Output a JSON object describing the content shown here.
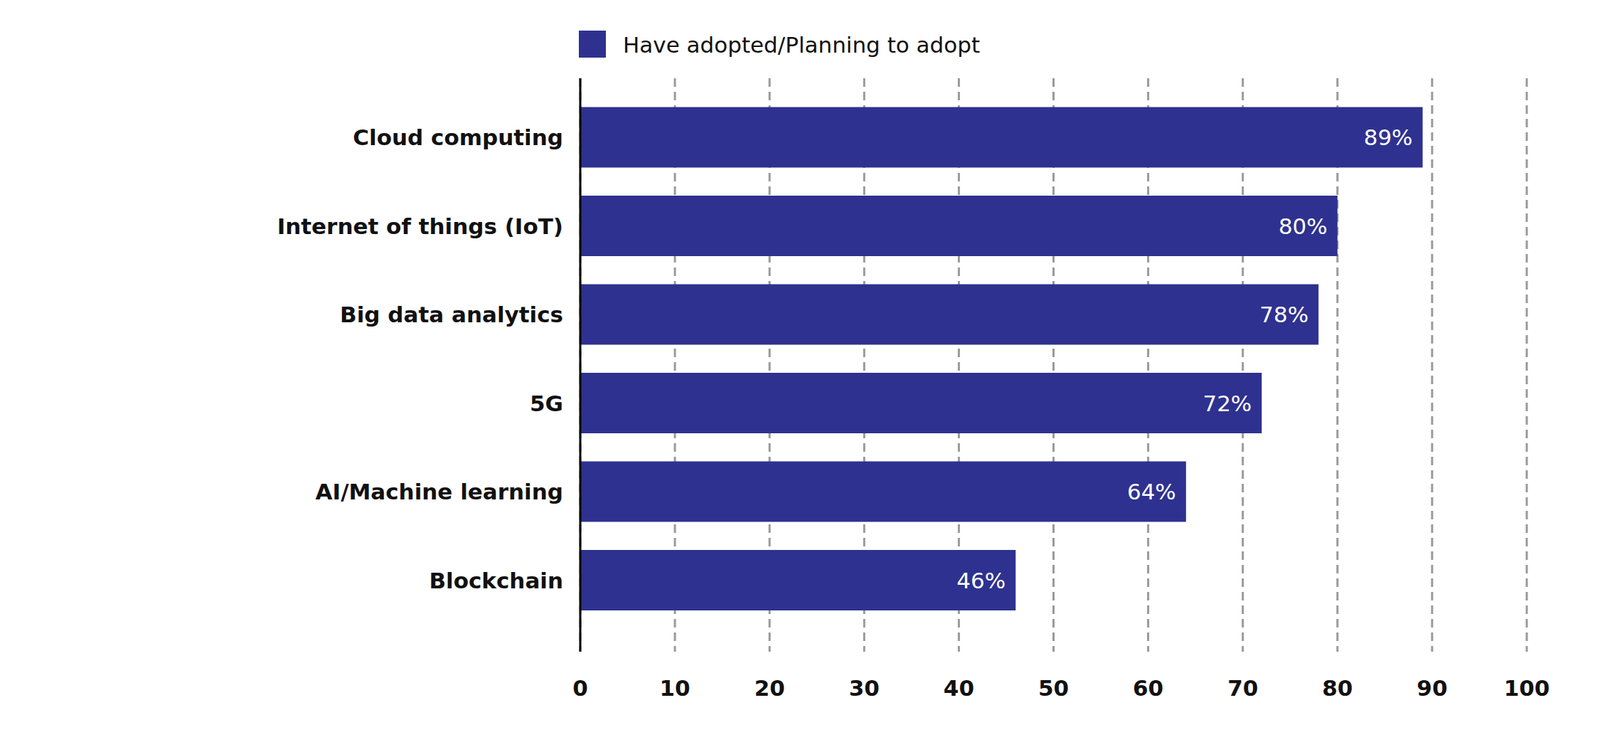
{
  "chart_data": {
    "type": "bar",
    "orientation": "horizontal",
    "categories": [
      "Cloud computing",
      "Internet of things (IoT)",
      "Big data analytics",
      "5G",
      "AI/Machine learning",
      "Blockchain"
    ],
    "series": [
      {
        "name": "Have adopted/Planning to adopt",
        "color": "#2e318f",
        "values": [
          89,
          80,
          78,
          72,
          64,
          46
        ],
        "value_labels": [
          "89%",
          "80%",
          "78%",
          "72%",
          "64%",
          "46%"
        ]
      }
    ],
    "xlim": [
      0,
      100
    ],
    "xticks": [
      0,
      10,
      20,
      30,
      40,
      50,
      60,
      70,
      80,
      90,
      100
    ],
    "grid": true,
    "legend": "top",
    "data_labels": true
  }
}
